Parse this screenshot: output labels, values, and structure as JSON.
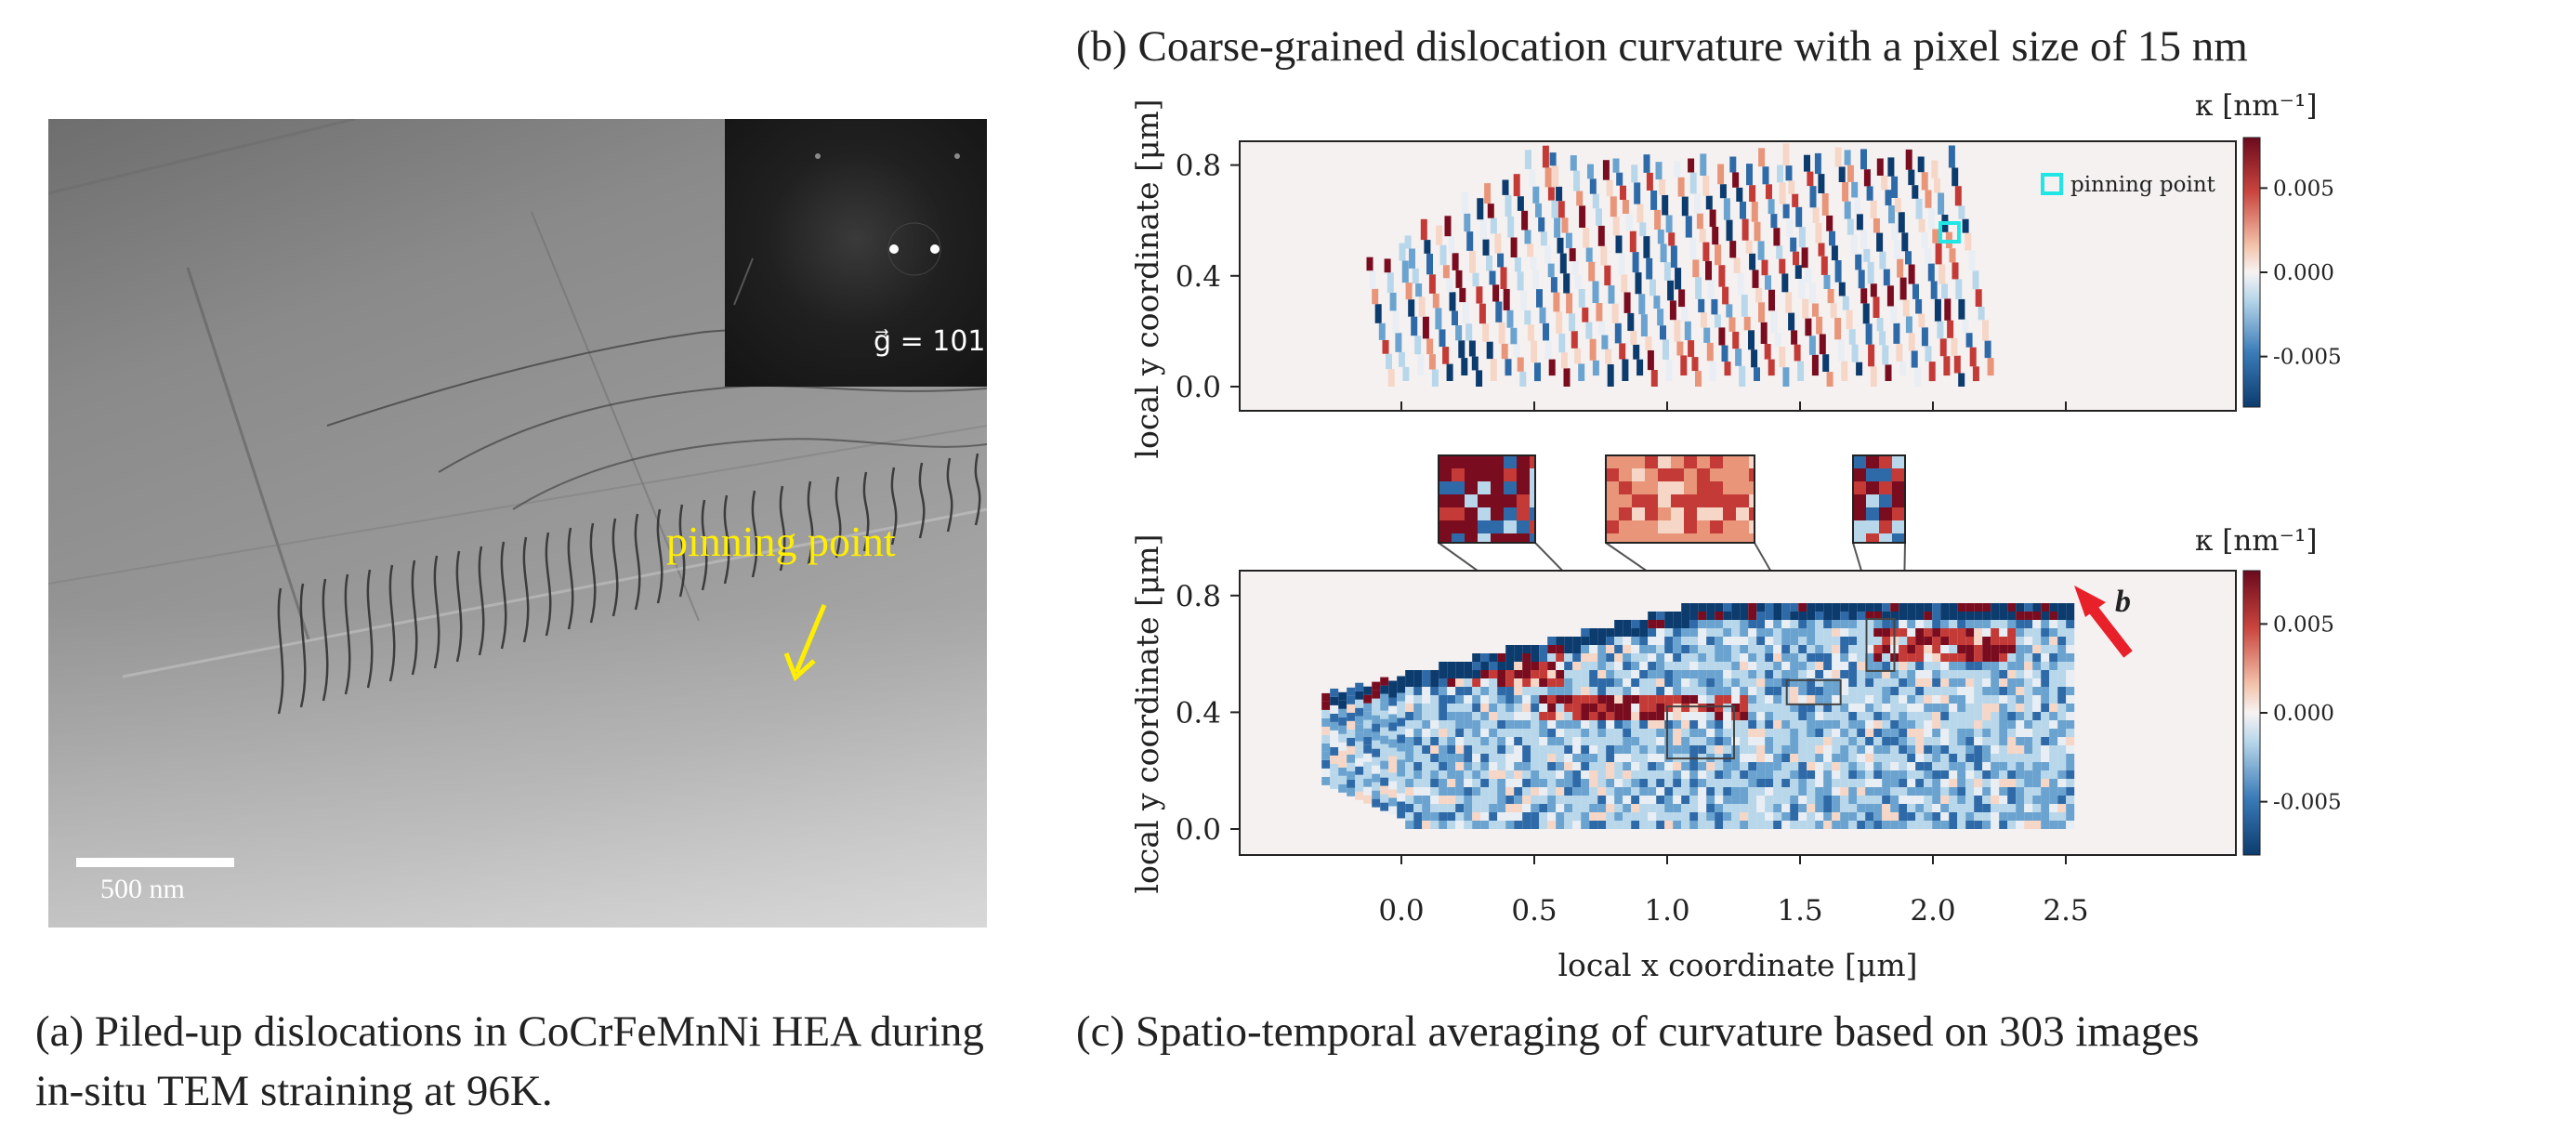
{
  "panel_a": {
    "g_vector_label": "g⃗ = 101",
    "pinning_label": "pinning point",
    "scale_bar_label": "500 nm",
    "caption": "(a) Piled-up dislocations in CoCrFeMnNi HEA during in-situ TEM straining at 96K."
  },
  "panel_b": {
    "caption": "(b) Coarse-grained dislocation curvature with a pixel size of 15 nm",
    "legend_label": "pinning point",
    "colorbar_title": "κ [nm⁻¹]"
  },
  "panel_c": {
    "caption": "(c) Spatio-temporal averaging of curvature based on 303 images",
    "colorbar_title": "κ [nm⁻¹]",
    "burgers_label": "b"
  },
  "colors": {
    "pinning_label": "#ffee00",
    "pinning_marker": "#22e6e6",
    "burgers_arrow": "#e8202a",
    "cmap_neg": "#1f4e8c",
    "cmap_zero": "#f7f3f3",
    "cmap_pos": "#8b0a1f"
  },
  "chart_data": [
    {
      "type": "heatmap",
      "panel": "b",
      "title": "(b) Coarse-grained dislocation curvature with a pixel size of 15 nm",
      "xlabel": "local x coordinate [μm]",
      "ylabel": "local y coordinate [μm]",
      "xlim": [
        -0.5,
        3.0
      ],
      "ylim": [
        -0.1,
        0.9
      ],
      "yticks": [
        "0.0",
        "0.4",
        "0.8"
      ],
      "colorbar": {
        "label": "κ [nm⁻¹]",
        "ticks": [
          "0.005",
          "0.000",
          "-0.005"
        ],
        "range": [
          -0.008,
          0.008
        ]
      },
      "legend": [
        "pinning point"
      ],
      "legend_position": "top-right",
      "pinning_point": {
        "x": 1.95,
        "y": 0.57
      }
    },
    {
      "type": "heatmap",
      "panel": "c",
      "title": "(c) Spatio-temporal averaging of curvature based on 303 images",
      "xlabel": "local x coordinate [μm]",
      "ylabel": "local y coordinate [μm]",
      "xlim": [
        -0.5,
        3.0
      ],
      "ylim": [
        -0.1,
        0.9
      ],
      "xticks": [
        "0.0",
        "0.5",
        "1.0",
        "1.5",
        "2.0",
        "2.5"
      ],
      "yticks": [
        "0.0",
        "0.4",
        "0.8"
      ],
      "colorbar": {
        "label": "κ [nm⁻¹]",
        "ticks": [
          "0.005",
          "0.000",
          "-0.005"
        ],
        "range": [
          -0.008,
          0.008
        ]
      },
      "annotations": [
        "b"
      ]
    }
  ]
}
